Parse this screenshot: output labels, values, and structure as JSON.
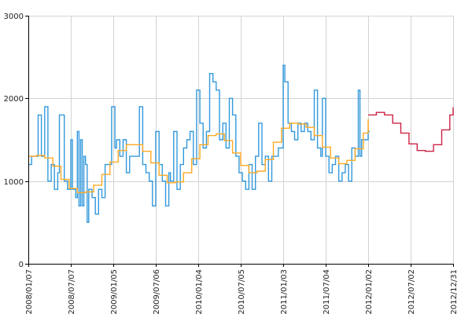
{
  "chart_data": {
    "type": "line",
    "title": "",
    "xlabel": "",
    "ylabel": "",
    "ylim": [
      0,
      3000
    ],
    "xlim": [
      "2008-01-07",
      "2012-12-31"
    ],
    "grid": true,
    "legend": "none",
    "y_ticks": [
      {
        "value": 0,
        "label": "0"
      },
      {
        "value": 1000,
        "label": "1000"
      },
      {
        "value": 2000,
        "label": "2000"
      },
      {
        "value": 3000,
        "label": "3000"
      }
    ],
    "x_ticks": [
      {
        "value": "2008-01-07",
        "label": "2008/01/07"
      },
      {
        "value": "2008-07-07",
        "label": "2008/07/07"
      },
      {
        "value": "2009-01-05",
        "label": "2009/01/05"
      },
      {
        "value": "2009-07-06",
        "label": "2009/07/06"
      },
      {
        "value": "2010-01-04",
        "label": "2010/01/04"
      },
      {
        "value": "2010-07-05",
        "label": "2010/07/05"
      },
      {
        "value": "2011-01-03",
        "label": "2011/01/03"
      },
      {
        "value": "2011-07-04",
        "label": "2011/07/04"
      },
      {
        "value": "2012-01-02",
        "label": "2012/01/02"
      },
      {
        "value": "2012-07-02",
        "label": "2012/07/02"
      },
      {
        "value": "2012-12-31",
        "label": "2012/12/31"
      }
    ],
    "series": [
      {
        "color": "#3399dd",
        "style": "step",
        "points": [
          [
            "2008-01-07",
            1200
          ],
          [
            "2008-01-21",
            1300
          ],
          [
            "2008-02-04",
            1300
          ],
          [
            "2008-02-18",
            1800
          ],
          [
            "2008-03-03",
            1300
          ],
          [
            "2008-03-17",
            1900
          ],
          [
            "2008-03-31",
            1000
          ],
          [
            "2008-04-14",
            1200
          ],
          [
            "2008-04-28",
            900
          ],
          [
            "2008-05-12",
            1100
          ],
          [
            "2008-05-19",
            1800
          ],
          [
            "2008-06-02",
            1800
          ],
          [
            "2008-06-09",
            1000
          ],
          [
            "2008-06-23",
            900
          ],
          [
            "2008-07-07",
            1500
          ],
          [
            "2008-07-14",
            900
          ],
          [
            "2008-07-28",
            800
          ],
          [
            "2008-08-04",
            1600
          ],
          [
            "2008-08-11",
            700
          ],
          [
            "2008-08-18",
            1500
          ],
          [
            "2008-08-25",
            700
          ],
          [
            "2008-09-01",
            1300
          ],
          [
            "2008-09-08",
            1200
          ],
          [
            "2008-09-15",
            500
          ],
          [
            "2008-09-22",
            900
          ],
          [
            "2008-10-06",
            800
          ],
          [
            "2008-10-20",
            600
          ],
          [
            "2008-11-03",
            900
          ],
          [
            "2008-11-17",
            800
          ],
          [
            "2008-12-01",
            1200
          ],
          [
            "2008-12-15",
            1200
          ],
          [
            "2008-12-29",
            1900
          ],
          [
            "2009-01-12",
            1400
          ],
          [
            "2009-01-19",
            1500
          ],
          [
            "2009-02-02",
            1300
          ],
          [
            "2009-02-16",
            1500
          ],
          [
            "2009-03-02",
            1100
          ],
          [
            "2009-03-16",
            1300
          ],
          [
            "2009-03-30",
            1300
          ],
          [
            "2009-04-13",
            1300
          ],
          [
            "2009-04-27",
            1900
          ],
          [
            "2009-05-11",
            1200
          ],
          [
            "2009-05-25",
            1100
          ],
          [
            "2009-06-08",
            1000
          ],
          [
            "2009-06-22",
            700
          ],
          [
            "2009-07-06",
            1600
          ],
          [
            "2009-07-20",
            1200
          ],
          [
            "2009-08-03",
            1000
          ],
          [
            "2009-08-17",
            700
          ],
          [
            "2009-08-31",
            1100
          ],
          [
            "2009-09-07",
            1000
          ],
          [
            "2009-09-21",
            1600
          ],
          [
            "2009-10-05",
            900
          ],
          [
            "2009-10-19",
            1200
          ],
          [
            "2009-11-02",
            1400
          ],
          [
            "2009-11-16",
            1500
          ],
          [
            "2009-11-30",
            1600
          ],
          [
            "2009-12-14",
            1200
          ],
          [
            "2009-12-28",
            2100
          ],
          [
            "2010-01-11",
            1700
          ],
          [
            "2010-01-25",
            1400
          ],
          [
            "2010-02-08",
            1600
          ],
          [
            "2010-02-22",
            2300
          ],
          [
            "2010-03-08",
            2200
          ],
          [
            "2010-03-22",
            2100
          ],
          [
            "2010-04-05",
            1500
          ],
          [
            "2010-04-19",
            1700
          ],
          [
            "2010-05-03",
            1400
          ],
          [
            "2010-05-17",
            2000
          ],
          [
            "2010-05-31",
            1800
          ],
          [
            "2010-06-14",
            1300
          ],
          [
            "2010-06-28",
            1100
          ],
          [
            "2010-07-12",
            1000
          ],
          [
            "2010-07-26",
            900
          ],
          [
            "2010-08-09",
            1200
          ],
          [
            "2010-08-23",
            900
          ],
          [
            "2010-09-06",
            1300
          ],
          [
            "2010-09-20",
            1700
          ],
          [
            "2010-10-04",
            1200
          ],
          [
            "2010-10-18",
            1300
          ],
          [
            "2010-11-01",
            1000
          ],
          [
            "2010-11-15",
            1300
          ],
          [
            "2010-11-29",
            1300
          ],
          [
            "2010-12-13",
            1400
          ],
          [
            "2010-12-27",
            1400
          ],
          [
            "2011-01-03",
            2400
          ],
          [
            "2011-01-10",
            2200
          ],
          [
            "2011-01-24",
            1700
          ],
          [
            "2011-02-07",
            1600
          ],
          [
            "2011-02-21",
            1500
          ],
          [
            "2011-03-07",
            1700
          ],
          [
            "2011-03-21",
            1600
          ],
          [
            "2011-04-04",
            1700
          ],
          [
            "2011-04-18",
            1600
          ],
          [
            "2011-05-02",
            1500
          ],
          [
            "2011-05-16",
            2100
          ],
          [
            "2011-05-30",
            1400
          ],
          [
            "2011-06-13",
            1300
          ],
          [
            "2011-06-20",
            2000
          ],
          [
            "2011-06-27",
            2000
          ],
          [
            "2011-07-04",
            1300
          ],
          [
            "2011-07-18",
            1100
          ],
          [
            "2011-08-01",
            1200
          ],
          [
            "2011-08-15",
            1300
          ],
          [
            "2011-08-29",
            1000
          ],
          [
            "2011-09-12",
            1100
          ],
          [
            "2011-09-26",
            1200
          ],
          [
            "2011-10-10",
            1000
          ],
          [
            "2011-10-24",
            1400
          ],
          [
            "2011-11-07",
            1300
          ],
          [
            "2011-11-21",
            2100
          ],
          [
            "2011-11-28",
            1300
          ],
          [
            "2011-12-05",
            1500
          ],
          [
            "2011-12-19",
            1500
          ],
          [
            "2012-01-02",
            1600
          ],
          [
            "2012-01-09",
            1600
          ]
        ]
      },
      {
        "color": "#ffaa22",
        "style": "step",
        "points": [
          [
            "2008-01-07",
            1300
          ],
          [
            "2008-02-11",
            1310
          ],
          [
            "2008-03-17",
            1280
          ],
          [
            "2008-04-21",
            1180
          ],
          [
            "2008-05-26",
            1020
          ],
          [
            "2008-06-30",
            910
          ],
          [
            "2008-08-04",
            860
          ],
          [
            "2008-09-08",
            870
          ],
          [
            "2008-10-13",
            950
          ],
          [
            "2008-11-17",
            1080
          ],
          [
            "2008-12-22",
            1230
          ],
          [
            "2009-01-26",
            1370
          ],
          [
            "2009-03-02",
            1440
          ],
          [
            "2009-04-06",
            1440
          ],
          [
            "2009-05-11",
            1360
          ],
          [
            "2009-06-15",
            1220
          ],
          [
            "2009-07-20",
            1070
          ],
          [
            "2009-08-24",
            980
          ],
          [
            "2009-09-28",
            990
          ],
          [
            "2009-11-02",
            1100
          ],
          [
            "2009-12-07",
            1270
          ],
          [
            "2010-01-11",
            1440
          ],
          [
            "2010-02-15",
            1550
          ],
          [
            "2010-03-22",
            1570
          ],
          [
            "2010-04-26",
            1490
          ],
          [
            "2010-05-31",
            1340
          ],
          [
            "2010-07-05",
            1190
          ],
          [
            "2010-08-09",
            1100
          ],
          [
            "2010-09-13",
            1120
          ],
          [
            "2010-10-18",
            1260
          ],
          [
            "2010-11-22",
            1470
          ],
          [
            "2010-12-27",
            1640
          ],
          [
            "2011-01-31",
            1700
          ],
          [
            "2011-03-07",
            1690
          ],
          [
            "2011-04-11",
            1650
          ],
          [
            "2011-05-16",
            1550
          ],
          [
            "2011-06-20",
            1410
          ],
          [
            "2011-07-25",
            1280
          ],
          [
            "2011-08-29",
            1210
          ],
          [
            "2011-10-03",
            1250
          ],
          [
            "2011-11-07",
            1390
          ],
          [
            "2011-12-12",
            1580
          ],
          [
            "2012-01-02",
            1750
          ]
        ]
      },
      {
        "color": "#cc2244",
        "style": "step",
        "points": [
          [
            "2012-01-02",
            1800
          ],
          [
            "2012-02-06",
            1830
          ],
          [
            "2012-03-12",
            1800
          ],
          [
            "2012-04-16",
            1700
          ],
          [
            "2012-05-21",
            1580
          ],
          [
            "2012-06-25",
            1450
          ],
          [
            "2012-07-30",
            1370
          ],
          [
            "2012-09-03",
            1360
          ],
          [
            "2012-10-08",
            1440
          ],
          [
            "2012-11-12",
            1620
          ],
          [
            "2012-12-17",
            1800
          ],
          [
            "2012-12-31",
            1890
          ]
        ]
      }
    ]
  }
}
